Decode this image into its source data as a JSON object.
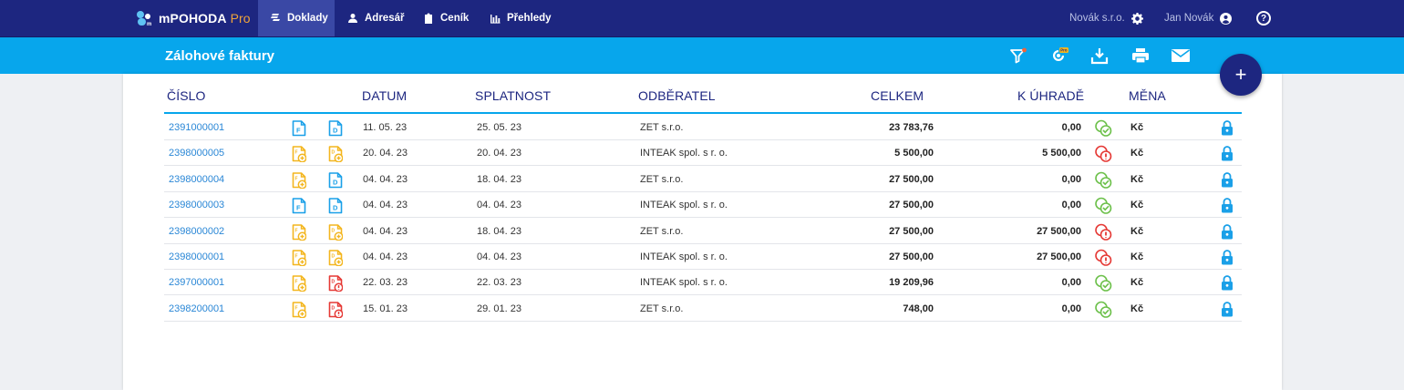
{
  "app": {
    "brand": "mPOHODA",
    "brand_suffix": "Pro"
  },
  "nav": {
    "items": [
      {
        "label": "Doklady",
        "icon": "documents-icon",
        "active": true
      },
      {
        "label": "Adresář",
        "icon": "person-icon",
        "active": false
      },
      {
        "label": "Ceník",
        "icon": "clipboard-icon",
        "active": false
      },
      {
        "label": "Přehledy",
        "icon": "bar-chart-icon",
        "active": false
      }
    ],
    "company": "Novák s.r.o.",
    "user": "Jan Novák",
    "help": "?"
  },
  "page": {
    "title": "Zálohové faktury",
    "toolbar": [
      "filter-icon",
      "pro-feature-icon",
      "download-icon",
      "print-icon",
      "email-icon"
    ],
    "fab_label": "+"
  },
  "table": {
    "columns": [
      "ČÍSLO",
      "DATUM",
      "SPLATNOST",
      "ODBĚRATEL",
      "CELKEM",
      "K ÚHRADĚ",
      "MĚNA"
    ],
    "rows": [
      {
        "number": "2391000001",
        "doc1": "F",
        "doc2": "D",
        "date": "11. 05. 23",
        "due": "25. 05. 23",
        "customer": "ZET s.r.o.",
        "total": "23 783,76",
        "to_pay": "0,00",
        "paid": true,
        "currency": "Kč"
      },
      {
        "number": "2398000005",
        "doc1": "add",
        "doc2": "add",
        "date": "20. 04. 23",
        "due": "20. 04. 23",
        "customer": "INTEAK spol. s r. o.",
        "total": "5 500,00",
        "to_pay": "5 500,00",
        "paid": false,
        "currency": "Kč"
      },
      {
        "number": "2398000004",
        "doc1": "add",
        "doc2": "D",
        "date": "04. 04. 23",
        "due": "18. 04. 23",
        "customer": "ZET s.r.o.",
        "total": "27 500,00",
        "to_pay": "0,00",
        "paid": true,
        "currency": "Kč"
      },
      {
        "number": "2398000003",
        "doc1": "F",
        "doc2": "D",
        "date": "04. 04. 23",
        "due": "04. 04. 23",
        "customer": "INTEAK spol. s r. o.",
        "total": "27 500,00",
        "to_pay": "0,00",
        "paid": true,
        "currency": "Kč"
      },
      {
        "number": "2398000002",
        "doc1": "add",
        "doc2": "add",
        "date": "04. 04. 23",
        "due": "18. 04. 23",
        "customer": "ZET s.r.o.",
        "total": "27 500,00",
        "to_pay": "27 500,00",
        "paid": false,
        "currency": "Kč"
      },
      {
        "number": "2398000001",
        "doc1": "add",
        "doc2": "add",
        "date": "04. 04. 23",
        "due": "04. 04. 23",
        "customer": "INTEAK spol. s r. o.",
        "total": "27 500,00",
        "to_pay": "27 500,00",
        "paid": false,
        "currency": "Kč"
      },
      {
        "number": "2397000001",
        "doc1": "add",
        "doc2": "error",
        "date": "22. 03. 23",
        "due": "22. 03. 23",
        "customer": "INTEAK spol. s r. o.",
        "total": "19 209,96",
        "to_pay": "0,00",
        "paid": true,
        "currency": "Kč"
      },
      {
        "number": "2398200001",
        "doc1": "add",
        "doc2": "error",
        "date": "15. 01. 23",
        "due": "29. 01. 23",
        "customer": "ZET s.r.o.",
        "total": "748,00",
        "to_pay": "0,00",
        "paid": true,
        "currency": "Kč"
      }
    ]
  },
  "colors": {
    "nav_bg": "#1d2680",
    "accent": "#07a6ec",
    "link": "#2a87d6",
    "doc_blue": "#1aa0e8",
    "doc_yellow": "#f3b61f",
    "doc_red": "#e53935",
    "paid_green": "#6cc04a",
    "unpaid_red": "#e53935"
  }
}
